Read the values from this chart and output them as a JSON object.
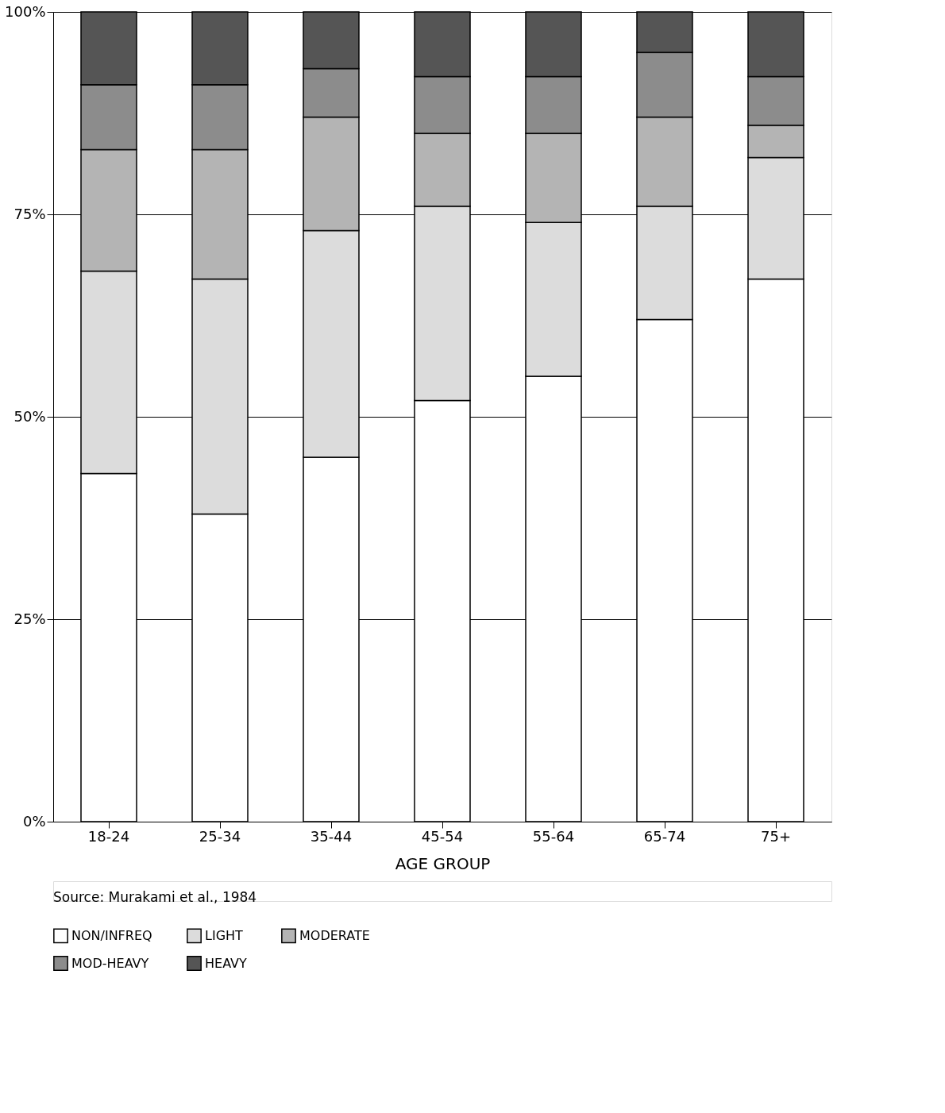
{
  "chart_data": {
    "type": "bar",
    "stacked": true,
    "xlabel": "AGE GROUP",
    "categories": [
      "18-24",
      "25-34",
      "35-44",
      "45-54",
      "55-64",
      "65-74",
      "75+"
    ],
    "series": [
      {
        "name": "NON/INFREQ",
        "color": "#ffffff",
        "values": [
          43,
          38,
          45,
          52,
          55,
          62,
          67
        ]
      },
      {
        "name": "LIGHT",
        "color": "#dcdcdc",
        "values": [
          25,
          29,
          28,
          24,
          19,
          14,
          15
        ]
      },
      {
        "name": "MODERATE",
        "color": "#b4b4b4",
        "values": [
          15,
          16,
          14,
          9,
          11,
          11,
          4
        ]
      },
      {
        "name": "MOD-HEAVY",
        "color": "#8c8c8c",
        "values": [
          8,
          8,
          6,
          7,
          7,
          8,
          6
        ]
      },
      {
        "name": "HEAVY",
        "color": "#555555",
        "values": [
          9,
          9,
          7,
          8,
          8,
          5,
          8
        ]
      }
    ],
    "ylim": [
      0,
      100
    ],
    "yticks": [
      {
        "value": 0,
        "label": "0%"
      },
      {
        "value": 25,
        "label": "25%"
      },
      {
        "value": 50,
        "label": "50%"
      },
      {
        "value": 75,
        "label": "75%"
      },
      {
        "value": 100,
        "label": "100%"
      }
    ],
    "grid": "y",
    "legend": "bottom",
    "annotations": [
      "Source: Murakami et al., 1984"
    ]
  }
}
